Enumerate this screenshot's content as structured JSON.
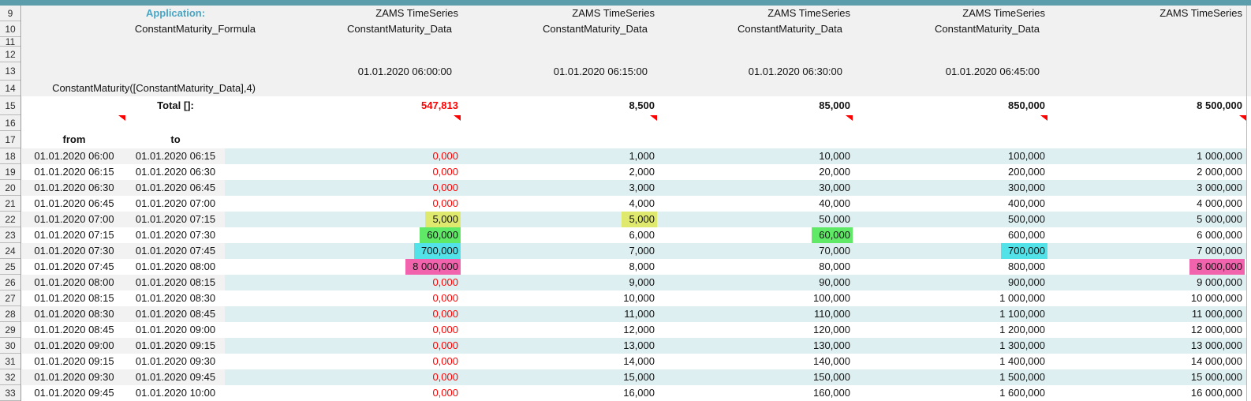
{
  "labels": {
    "application": "Application:",
    "total": "Total []:",
    "from": "from",
    "to": "to"
  },
  "colors": {
    "accent_bar": "#5b9dab",
    "application_text": "#4aa5c4",
    "red_text": "#ff0000",
    "header_gray": "#f1f1f1",
    "band_cyan": "#ddeff1",
    "band_gray": "#f2f2f2",
    "hl_yellow": "#dee96e",
    "hl_green": "#5fe966",
    "hl_cyan": "#54e2e9",
    "hl_pink": "#f263ad"
  },
  "row_numbers": [
    9,
    10,
    11,
    12,
    13,
    14,
    15,
    16,
    17,
    18,
    19,
    20,
    21,
    22,
    23,
    24,
    25,
    26,
    27,
    28,
    29,
    30,
    31,
    32,
    33
  ],
  "columns": [
    {
      "line1": "ZAMS TimeSeries",
      "line2": "ConstantMaturity_Formula",
      "timestamp": "",
      "formula": "ConstantMaturity([ConstantMaturity_Data],4)",
      "total": "547,813",
      "total_red": true
    },
    {
      "line1": "ZAMS TimeSeries",
      "line2": "ConstantMaturity_Data",
      "timestamp": "01.01.2020 06:00:00",
      "formula": "",
      "total": "8,500",
      "total_red": false
    },
    {
      "line1": "ZAMS TimeSeries",
      "line2": "ConstantMaturity_Data",
      "timestamp": "01.01.2020 06:15:00",
      "formula": "",
      "total": "85,000",
      "total_red": false
    },
    {
      "line1": "ZAMS TimeSeries",
      "line2": "ConstantMaturity_Data",
      "timestamp": "01.01.2020 06:30:00",
      "formula": "",
      "total": "850,000",
      "total_red": false
    },
    {
      "line1": "ZAMS TimeSeries",
      "line2": "ConstantMaturity_Data",
      "timestamp": "01.01.2020 06:45:00",
      "formula": "",
      "total": "8 500,000",
      "total_red": false
    }
  ],
  "rows": [
    {
      "n": 18,
      "from": "01.01.2020 06:00",
      "to": "01.01.2020 06:15",
      "v": [
        "0,000",
        "1,000",
        "10,000",
        "100,000",
        "1 000,000"
      ],
      "red": [
        0
      ],
      "hl": {}
    },
    {
      "n": 19,
      "from": "01.01.2020 06:15",
      "to": "01.01.2020 06:30",
      "v": [
        "0,000",
        "2,000",
        "20,000",
        "200,000",
        "2 000,000"
      ],
      "red": [
        0
      ],
      "hl": {}
    },
    {
      "n": 20,
      "from": "01.01.2020 06:30",
      "to": "01.01.2020 06:45",
      "v": [
        "0,000",
        "3,000",
        "30,000",
        "300,000",
        "3 000,000"
      ],
      "red": [
        0
      ],
      "hl": {}
    },
    {
      "n": 21,
      "from": "01.01.2020 06:45",
      "to": "01.01.2020 07:00",
      "v": [
        "0,000",
        "4,000",
        "40,000",
        "400,000",
        "4 000,000"
      ],
      "red": [
        0
      ],
      "hl": {}
    },
    {
      "n": 22,
      "from": "01.01.2020 07:00",
      "to": "01.01.2020 07:15",
      "v": [
        "5,000",
        "5,000",
        "50,000",
        "500,000",
        "5 000,000"
      ],
      "red": [],
      "hl": {
        "0": "hl_yellow",
        "1": "hl_yellow"
      }
    },
    {
      "n": 23,
      "from": "01.01.2020 07:15",
      "to": "01.01.2020 07:30",
      "v": [
        "60,000",
        "6,000",
        "60,000",
        "600,000",
        "6 000,000"
      ],
      "red": [],
      "hl": {
        "0": "hl_green",
        "2": "hl_green"
      }
    },
    {
      "n": 24,
      "from": "01.01.2020 07:30",
      "to": "01.01.2020 07:45",
      "v": [
        "700,000",
        "7,000",
        "70,000",
        "700,000",
        "7 000,000"
      ],
      "red": [],
      "hl": {
        "0": "hl_cyan",
        "3": "hl_cyan"
      }
    },
    {
      "n": 25,
      "from": "01.01.2020 07:45",
      "to": "01.01.2020 08:00",
      "v": [
        "8 000,000",
        "8,000",
        "80,000",
        "800,000",
        "8 000,000"
      ],
      "red": [],
      "hl": {
        "0": "hl_pink",
        "4": "hl_pink"
      }
    },
    {
      "n": 26,
      "from": "01.01.2020 08:00",
      "to": "01.01.2020 08:15",
      "v": [
        "0,000",
        "9,000",
        "90,000",
        "900,000",
        "9 000,000"
      ],
      "red": [
        0
      ],
      "hl": {}
    },
    {
      "n": 27,
      "from": "01.01.2020 08:15",
      "to": "01.01.2020 08:30",
      "v": [
        "0,000",
        "10,000",
        "100,000",
        "1 000,000",
        "10 000,000"
      ],
      "red": [
        0
      ],
      "hl": {}
    },
    {
      "n": 28,
      "from": "01.01.2020 08:30",
      "to": "01.01.2020 08:45",
      "v": [
        "0,000",
        "11,000",
        "110,000",
        "1 100,000",
        "11 000,000"
      ],
      "red": [
        0
      ],
      "hl": {}
    },
    {
      "n": 29,
      "from": "01.01.2020 08:45",
      "to": "01.01.2020 09:00",
      "v": [
        "0,000",
        "12,000",
        "120,000",
        "1 200,000",
        "12 000,000"
      ],
      "red": [
        0
      ],
      "hl": {}
    },
    {
      "n": 30,
      "from": "01.01.2020 09:00",
      "to": "01.01.2020 09:15",
      "v": [
        "0,000",
        "13,000",
        "130,000",
        "1 300,000",
        "13 000,000"
      ],
      "red": [
        0
      ],
      "hl": {}
    },
    {
      "n": 31,
      "from": "01.01.2020 09:15",
      "to": "01.01.2020 09:30",
      "v": [
        "0,000",
        "14,000",
        "140,000",
        "1 400,000",
        "14 000,000"
      ],
      "red": [
        0
      ],
      "hl": {}
    },
    {
      "n": 32,
      "from": "01.01.2020 09:30",
      "to": "01.01.2020 09:45",
      "v": [
        "0,000",
        "15,000",
        "150,000",
        "1 500,000",
        "15 000,000"
      ],
      "red": [
        0
      ],
      "hl": {}
    },
    {
      "n": 33,
      "from": "01.01.2020 09:45",
      "to": "01.01.2020 10:00",
      "v": [
        "0,000",
        "16,000",
        "160,000",
        "1 600,000",
        "16 000,000"
      ],
      "red": [
        0
      ],
      "hl": {}
    }
  ]
}
